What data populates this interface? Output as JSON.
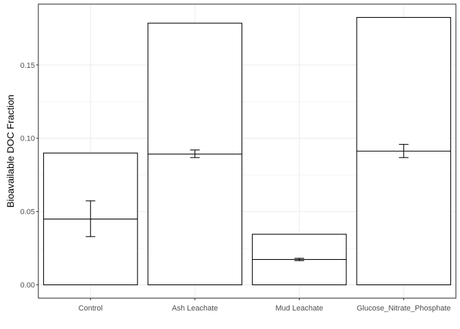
{
  "chart_data": {
    "type": "bar",
    "title": "",
    "xlabel": "",
    "ylabel": "Bioavailable DOC Fraction",
    "categories": [
      "Control",
      "Ash Leachate",
      "Mud Leachate",
      "Glucose_Nitrate_Phosphate"
    ],
    "values": [
      0.0899,
      0.1785,
      0.0345,
      0.1824
    ],
    "mean": [
      0.0449,
      0.0892,
      0.0173,
      0.0912
    ],
    "error_low": [
      0.0329,
      0.0868,
      0.0165,
      0.0868
    ],
    "error_high": [
      0.0573,
      0.092,
      0.0181,
      0.0958
    ],
    "ylim": [
      -0.0091,
      0.1915
    ],
    "yticks": [
      0.0,
      0.05,
      0.1,
      0.15
    ],
    "ytick_labels": [
      "0.00",
      "0.05",
      "0.10",
      "0.15"
    ],
    "grid": true,
    "legend": "none",
    "colors": {
      "bar_fill": "#ffffff",
      "bar_stroke": "#000000",
      "grid": "#ebebeb",
      "panel_border": "#333333",
      "tick_text": "#4d4d4d"
    }
  }
}
